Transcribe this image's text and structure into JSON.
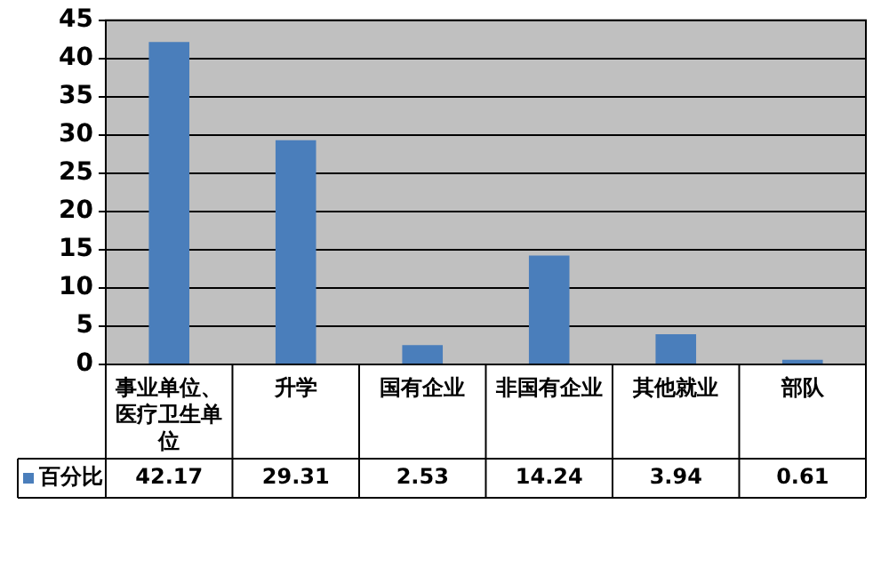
{
  "chart_data": {
    "type": "bar",
    "categories": [
      "事业单位、医疗卫生单位",
      "升学",
      "国有企业",
      "非国有企业",
      "其他就业",
      "部队"
    ],
    "series": [
      {
        "name": "百分比",
        "color": "#4a7ebb",
        "values": [
          42.17,
          29.31,
          2.53,
          14.24,
          3.94,
          0.61
        ]
      }
    ],
    "ylim": [
      0,
      45
    ],
    "yticks": [
      0,
      5,
      10,
      15,
      20,
      25,
      30,
      35,
      40,
      45
    ],
    "grid": "y",
    "legend": "bottom",
    "data_labels": true
  }
}
